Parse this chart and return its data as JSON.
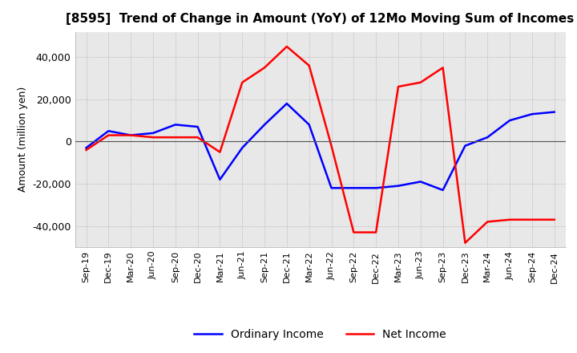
{
  "title": "[8595]  Trend of Change in Amount (YoY) of 12Mo Moving Sum of Incomes",
  "ylabel": "Amount (million yen)",
  "ylim": [
    -50000,
    52000
  ],
  "yticks": [
    -40000,
    -20000,
    0,
    20000,
    40000
  ],
  "x_labels": [
    "Sep-19",
    "Dec-19",
    "Mar-20",
    "Jun-20",
    "Sep-20",
    "Dec-20",
    "Mar-21",
    "Jun-21",
    "Sep-21",
    "Dec-21",
    "Mar-22",
    "Jun-22",
    "Sep-22",
    "Dec-22",
    "Mar-23",
    "Jun-23",
    "Sep-23",
    "Dec-23",
    "Mar-24",
    "Jun-24",
    "Sep-24",
    "Dec-24"
  ],
  "ordinary_income": [
    -3000,
    5000,
    3000,
    4000,
    8000,
    7000,
    -18000,
    -3000,
    8000,
    18000,
    8000,
    -22000,
    -22000,
    -22000,
    -21000,
    -19000,
    -23000,
    -2000,
    2000,
    10000,
    13000,
    14000
  ],
  "net_income": [
    -4000,
    3000,
    3000,
    2000,
    2000,
    2000,
    -5000,
    28000,
    35000,
    45000,
    36000,
    -2000,
    -43000,
    -43000,
    26000,
    28000,
    35000,
    -48000,
    -38000,
    -37000,
    -37000,
    -37000
  ],
  "ordinary_color": "#0000ff",
  "net_color": "#ff0000",
  "legend_labels": [
    "Ordinary Income",
    "Net Income"
  ],
  "background_color": "#ffffff",
  "plot_bg_color": "#e8e8e8",
  "grid_color": "#888888"
}
